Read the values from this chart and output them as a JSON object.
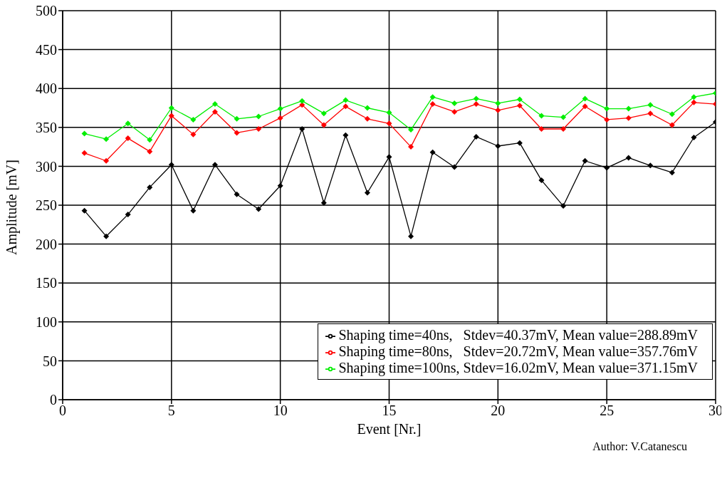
{
  "chart_data": {
    "type": "line",
    "xlabel": "Event  [Nr.]",
    "ylabel": "Amplitude  [mV]",
    "x": [
      1,
      2,
      3,
      4,
      5,
      6,
      7,
      8,
      9,
      10,
      11,
      12,
      13,
      14,
      15,
      16,
      17,
      18,
      19,
      20,
      21,
      22,
      23,
      24,
      25,
      26,
      27,
      28,
      29,
      30
    ],
    "series": [
      {
        "name": "Shaping time=40ns,   Stdev=40.37mV, Mean value=288.89mV",
        "color": "#000000",
        "values": [
          243,
          210,
          238,
          273,
          302,
          243,
          302,
          264,
          245,
          275,
          348,
          253,
          340,
          266,
          312,
          210,
          318,
          299,
          338,
          326,
          330,
          282,
          249,
          307,
          298,
          311,
          301,
          292,
          337,
          357
        ]
      },
      {
        "name": "Shaping time=80ns,   Stdev=20.72mV, Mean value=357.76mV",
        "color": "#ff0000",
        "values": [
          317,
          307,
          336,
          319,
          365,
          341,
          370,
          343,
          348,
          362,
          379,
          353,
          377,
          361,
          355,
          325,
          380,
          370,
          380,
          372,
          378,
          348,
          348,
          377,
          360,
          362,
          368,
          353,
          382,
          380
        ]
      },
      {
        "name": "Shaping time=100ns, Stdev=16.02mV, Mean value=371.15mV",
        "color": "#00ee00",
        "values": [
          342,
          335,
          355,
          334,
          375,
          360,
          380,
          361,
          364,
          374,
          384,
          368,
          385,
          375,
          369,
          347,
          389,
          381,
          387,
          381,
          386,
          365,
          363,
          387,
          374,
          374,
          379,
          367,
          389,
          394
        ]
      }
    ],
    "xlim": [
      0,
      30
    ],
    "xticks": [
      0,
      5,
      10,
      15,
      20,
      25,
      30
    ],
    "ylim": [
      0,
      500
    ],
    "yticks": [
      0,
      50,
      100,
      150,
      200,
      250,
      300,
      350,
      400,
      450,
      500
    ],
    "grid": true,
    "legend": "bottom right",
    "marker": "diamond",
    "line_style": "solid",
    "annotations": [
      "Author: V.Catanescu"
    ]
  }
}
